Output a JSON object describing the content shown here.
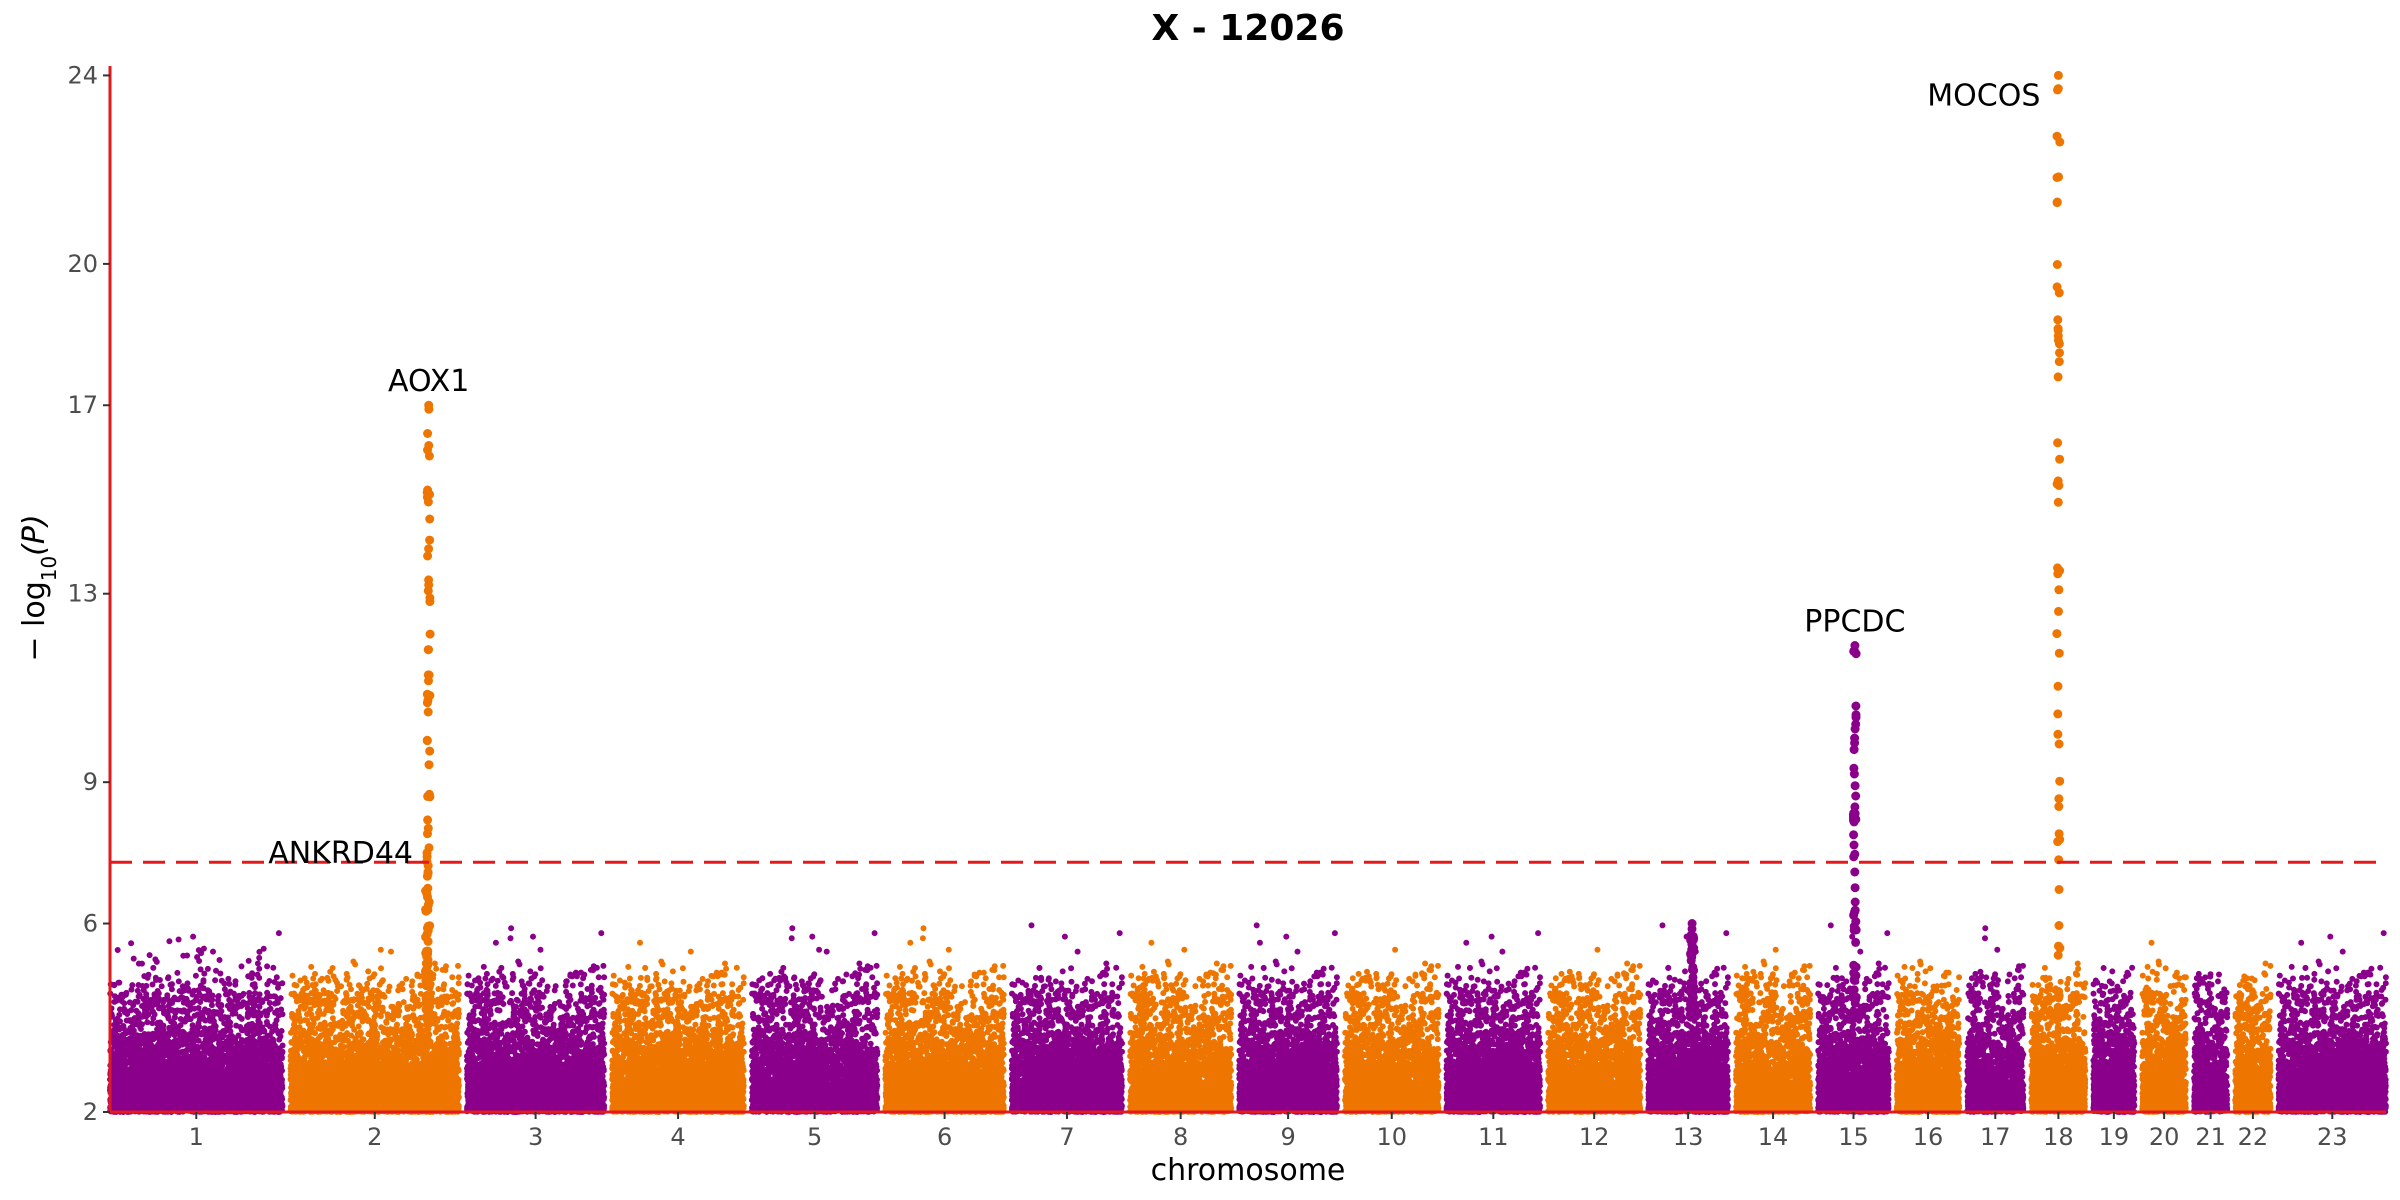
{
  "chart_data": {
    "type": "scatter",
    "title": "X - 12026",
    "xlabel": "chromosome",
    "ylabel": "− log10(P)",
    "ylabel_parts": {
      "prefix": "− log",
      "sub": "10",
      "suffix": "(P)"
    },
    "ylim": [
      2,
      24.2
    ],
    "y_ticks": [
      2,
      6,
      9,
      13,
      17,
      20,
      24
    ],
    "threshold": 7.3,
    "grid": false,
    "legend": "none",
    "colors": {
      "odd": "#8b008b",
      "even": "#ee7600",
      "axis": "#e31a1c",
      "threshold": "#e31a1c"
    },
    "chromosomes": [
      {
        "label": "1",
        "length": 249,
        "max_bg": 5.8
      },
      {
        "label": "2",
        "length": 243,
        "max_bg": 5.5
      },
      {
        "label": "3",
        "length": 198,
        "max_bg": 6.0
      },
      {
        "label": "4",
        "length": 190,
        "max_bg": 5.6
      },
      {
        "label": "5",
        "length": 181,
        "max_bg": 5.9
      },
      {
        "label": "6",
        "length": 171,
        "max_bg": 6.0
      },
      {
        "label": "7",
        "length": 159,
        "max_bg": 6.3
      },
      {
        "label": "8",
        "length": 146,
        "max_bg": 5.6
      },
      {
        "label": "9",
        "length": 141,
        "max_bg": 6.3
      },
      {
        "label": "10",
        "length": 135,
        "max_bg": 5.6
      },
      {
        "label": "11",
        "length": 135,
        "max_bg": 5.8
      },
      {
        "label": "12",
        "length": 133,
        "max_bg": 5.6
      },
      {
        "label": "13",
        "length": 115,
        "max_bg": 6.0
      },
      {
        "label": "14",
        "length": 107,
        "max_bg": 5.5
      },
      {
        "label": "15",
        "length": 102,
        "max_bg": 6.2
      },
      {
        "label": "16",
        "length": 90,
        "max_bg": 5.4
      },
      {
        "label": "17",
        "length": 81,
        "max_bg": 5.9
      },
      {
        "label": "18",
        "length": 78,
        "max_bg": 5.3
      },
      {
        "label": "19",
        "length": 59,
        "max_bg": 5.3
      },
      {
        "label": "20",
        "length": 63,
        "max_bg": 6.1
      },
      {
        "label": "21",
        "length": 48,
        "max_bg": 5.0
      },
      {
        "label": "22",
        "length": 51,
        "max_bg": 5.4
      },
      {
        "label": "23",
        "length": 155,
        "max_bg": 5.8
      }
    ],
    "peaks": [
      {
        "chr": "2",
        "pos_frac": 0.82,
        "max": 17.0,
        "gene": "AOX1",
        "label": true
      },
      {
        "chr": "2",
        "pos_frac": 0.81,
        "max": 7.5,
        "gene": "ANKRD44",
        "label": true
      },
      {
        "chr": "15",
        "pos_frac": 0.52,
        "max": 11.9,
        "gene": "PPCDC",
        "label": true
      },
      {
        "chr": "18",
        "pos_frac": 0.5,
        "max": 24.0,
        "gene": "MOCOS",
        "label": true
      },
      {
        "chr": "13",
        "pos_frac": 0.55,
        "max": 6.0,
        "gene": "",
        "label": false
      }
    ]
  }
}
